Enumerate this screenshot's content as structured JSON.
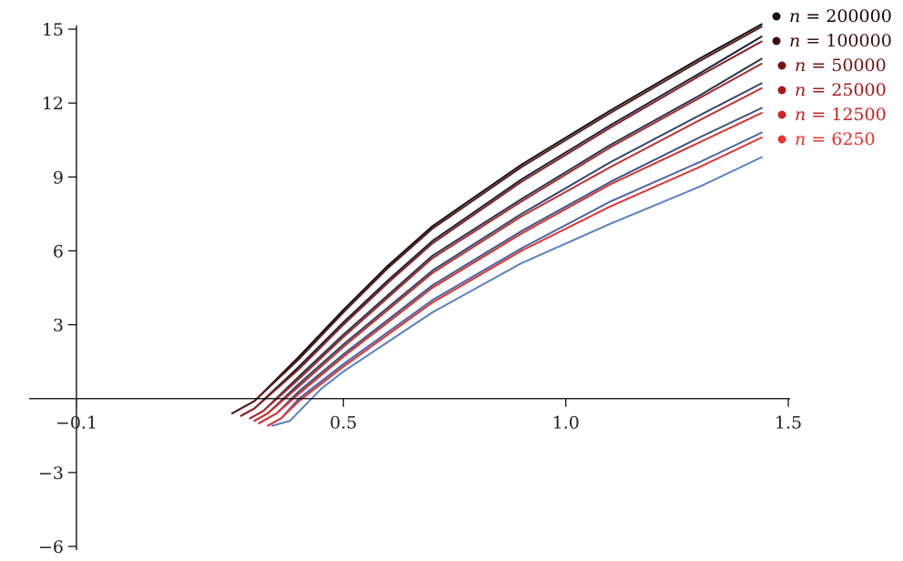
{
  "chart_data": {
    "type": "line",
    "title": "",
    "xlabel": "",
    "ylabel": "",
    "xlim": [
      -0.1,
      1.5
    ],
    "ylim": [
      -6,
      15
    ],
    "xticks": [
      -0.1,
      0.5,
      1.0,
      1.5
    ],
    "xtick_labels": [
      "−0.1",
      "0.5",
      "1.0",
      "1.5"
    ],
    "yticks": [
      -6,
      -3,
      3,
      6,
      9,
      12,
      15
    ],
    "ytick_labels": [
      "−6",
      "−3",
      "3",
      "6",
      "9",
      "12",
      "15"
    ],
    "grid": false,
    "legend_position": "top-right",
    "legend": [
      {
        "label_var": "n",
        "label_eq": " = 200000",
        "color": "#1a0505"
      },
      {
        "label_var": "n",
        "label_eq": " = 100000",
        "color": "#3d0c0c"
      },
      {
        "label_var": "n",
        "label_eq": " = 50000",
        "color": "#7a1212"
      },
      {
        "label_var": "n",
        "label_eq": " = 25000",
        "color": "#a81a1a"
      },
      {
        "label_var": "n",
        "label_eq": " = 12500",
        "color": "#cf2222"
      },
      {
        "label_var": "n",
        "label_eq": " = 6250",
        "color": "#ee3030"
      }
    ],
    "series": [
      {
        "color": "#111111",
        "points": [
          [
            0.25,
            -0.6
          ],
          [
            0.3,
            -0.1
          ],
          [
            0.4,
            1.7
          ],
          [
            0.5,
            3.6
          ],
          [
            0.6,
            5.4
          ],
          [
            0.7,
            7.0
          ],
          [
            0.9,
            9.5
          ],
          [
            1.1,
            11.7
          ],
          [
            1.3,
            13.8
          ],
          [
            1.44,
            15.2
          ]
        ]
      },
      {
        "color": "#5a1a1a",
        "points": [
          [
            0.25,
            -0.6
          ],
          [
            0.3,
            -0.1
          ],
          [
            0.4,
            1.6
          ],
          [
            0.5,
            3.5
          ],
          [
            0.6,
            5.3
          ],
          [
            0.7,
            6.9
          ],
          [
            0.9,
            9.4
          ],
          [
            1.1,
            11.6
          ],
          [
            1.3,
            13.7
          ],
          [
            1.44,
            15.1
          ]
        ]
      },
      {
        "color": "#1c2238",
        "points": [
          [
            0.27,
            -0.7
          ],
          [
            0.3,
            -0.4
          ],
          [
            0.4,
            1.3
          ],
          [
            0.5,
            3.1
          ],
          [
            0.6,
            4.8
          ],
          [
            0.7,
            6.4
          ],
          [
            0.9,
            8.9
          ],
          [
            1.1,
            11.1
          ],
          [
            1.3,
            13.2
          ],
          [
            1.44,
            14.7
          ]
        ]
      },
      {
        "color": "#8a1f1f",
        "points": [
          [
            0.27,
            -0.7
          ],
          [
            0.3,
            -0.4
          ],
          [
            0.4,
            1.2
          ],
          [
            0.5,
            3.0
          ],
          [
            0.6,
            4.7
          ],
          [
            0.7,
            6.3
          ],
          [
            0.9,
            8.8
          ],
          [
            1.1,
            11.0
          ],
          [
            1.3,
            13.1
          ],
          [
            1.44,
            14.5
          ]
        ]
      },
      {
        "color": "#2a3650",
        "points": [
          [
            0.29,
            -0.8
          ],
          [
            0.32,
            -0.5
          ],
          [
            0.4,
            0.9
          ],
          [
            0.5,
            2.6
          ],
          [
            0.6,
            4.2
          ],
          [
            0.7,
            5.8
          ],
          [
            0.9,
            8.1
          ],
          [
            1.1,
            10.3
          ],
          [
            1.3,
            12.3
          ],
          [
            1.44,
            13.8
          ]
        ]
      },
      {
        "color": "#a82a2a",
        "points": [
          [
            0.29,
            -0.8
          ],
          [
            0.32,
            -0.5
          ],
          [
            0.4,
            0.8
          ],
          [
            0.5,
            2.5
          ],
          [
            0.6,
            4.1
          ],
          [
            0.7,
            5.7
          ],
          [
            0.9,
            8.0
          ],
          [
            1.1,
            10.2
          ],
          [
            1.3,
            12.2
          ],
          [
            1.44,
            13.6
          ]
        ]
      },
      {
        "color": "#33466e",
        "points": [
          [
            0.3,
            -0.9
          ],
          [
            0.33,
            -0.6
          ],
          [
            0.4,
            0.6
          ],
          [
            0.5,
            2.2
          ],
          [
            0.6,
            3.7
          ],
          [
            0.7,
            5.2
          ],
          [
            0.9,
            7.5
          ],
          [
            1.1,
            9.6
          ],
          [
            1.3,
            11.5
          ],
          [
            1.44,
            12.8
          ]
        ]
      },
      {
        "color": "#c23030",
        "points": [
          [
            0.3,
            -0.9
          ],
          [
            0.33,
            -0.6
          ],
          [
            0.4,
            0.5
          ],
          [
            0.5,
            2.1
          ],
          [
            0.6,
            3.6
          ],
          [
            0.7,
            5.1
          ],
          [
            0.9,
            7.4
          ],
          [
            1.1,
            9.4
          ],
          [
            1.3,
            11.3
          ],
          [
            1.44,
            12.6
          ]
        ]
      },
      {
        "color": "#3d5587",
        "points": [
          [
            0.31,
            -1.0
          ],
          [
            0.35,
            -0.6
          ],
          [
            0.4,
            0.3
          ],
          [
            0.5,
            1.8
          ],
          [
            0.6,
            3.2
          ],
          [
            0.7,
            4.6
          ],
          [
            0.9,
            6.8
          ],
          [
            1.1,
            8.8
          ],
          [
            1.3,
            10.6
          ],
          [
            1.44,
            11.8
          ]
        ]
      },
      {
        "color": "#d83030",
        "points": [
          [
            0.31,
            -1.0
          ],
          [
            0.35,
            -0.6
          ],
          [
            0.4,
            0.2
          ],
          [
            0.5,
            1.7
          ],
          [
            0.6,
            3.1
          ],
          [
            0.7,
            4.5
          ],
          [
            0.9,
            6.7
          ],
          [
            1.1,
            8.7
          ],
          [
            1.3,
            10.4
          ],
          [
            1.44,
            11.6
          ]
        ]
      },
      {
        "color": "#4a66a6",
        "points": [
          [
            0.33,
            -1.1
          ],
          [
            0.36,
            -0.8
          ],
          [
            0.4,
            0.0
          ],
          [
            0.5,
            1.4
          ],
          [
            0.6,
            2.7
          ],
          [
            0.7,
            4.0
          ],
          [
            0.9,
            6.1
          ],
          [
            1.1,
            8.0
          ],
          [
            1.3,
            9.6
          ],
          [
            1.44,
            10.8
          ]
        ]
      },
      {
        "color": "#e43232",
        "points": [
          [
            0.33,
            -1.1
          ],
          [
            0.36,
            -0.8
          ],
          [
            0.4,
            -0.1
          ],
          [
            0.5,
            1.3
          ],
          [
            0.6,
            2.6
          ],
          [
            0.7,
            3.9
          ],
          [
            0.9,
            6.0
          ],
          [
            1.1,
            7.8
          ],
          [
            1.3,
            9.4
          ],
          [
            1.44,
            10.6
          ]
        ]
      },
      {
        "color": "#5a80c6",
        "points": [
          [
            0.34,
            -1.1
          ],
          [
            0.38,
            -0.9
          ],
          [
            0.45,
            0.4
          ],
          [
            0.5,
            1.1
          ],
          [
            0.6,
            2.3
          ],
          [
            0.7,
            3.5
          ],
          [
            0.9,
            5.5
          ],
          [
            1.1,
            7.1
          ],
          [
            1.3,
            8.6
          ],
          [
            1.44,
            9.8
          ]
        ]
      }
    ]
  }
}
